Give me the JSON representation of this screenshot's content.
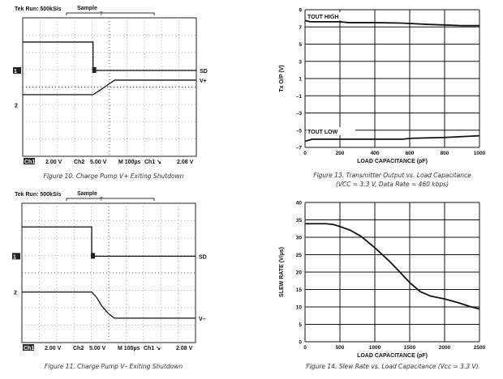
{
  "chart_data": [
    {
      "type": "line",
      "id": "fig10",
      "title": "Figure 10. Charge Pump V+ Exiting Shutdown",
      "header": {
        "run": "Tek Run: 500kS/s",
        "mode": "Sample",
        "trigger_mark": "T"
      },
      "footer": [
        "Ch1",
        "2.00 V",
        "Ch2",
        "5.00 V",
        "M 100µs",
        "Ch1 ↘",
        "2.08 V"
      ],
      "channel_markers": [
        "1",
        "2"
      ],
      "xlim": [
        0,
        10
      ],
      "ylim": [
        0,
        8
      ],
      "units": "divisions",
      "series": [
        {
          "name": "SD",
          "x": [
            0,
            4.05,
            4.05,
            10
          ],
          "y": [
            6.6,
            6.6,
            4.96,
            4.96
          ]
        },
        {
          "name": "V+",
          "x": [
            0,
            4.05,
            4.5,
            5.0,
            5.3,
            10
          ],
          "y": [
            3.56,
            3.56,
            3.85,
            4.2,
            4.4,
            4.4
          ]
        }
      ]
    },
    {
      "type": "line",
      "id": "fig11",
      "title": "Figure 11. Charge Pump V– Exiting Shutdown",
      "header": {
        "run": "Tek Run: 500kS/s",
        "mode": "Sample",
        "trigger_mark": "T"
      },
      "footer": [
        "Ch1",
        "2.00 V",
        "Ch2",
        "5.00 V",
        "M 100µs",
        "Ch1 ↘",
        "2.08 V"
      ],
      "channel_markers": [
        "1",
        "2"
      ],
      "xlim": [
        0,
        10
      ],
      "ylim": [
        0,
        8
      ],
      "units": "divisions",
      "series": [
        {
          "name": "SD",
          "x": [
            0,
            4.02,
            4.02,
            10
          ],
          "y": [
            6.64,
            6.64,
            4.96,
            4.96
          ]
        },
        {
          "name": "V–",
          "x": [
            0,
            4.02,
            4.3,
            4.6,
            5.0,
            5.33,
            10
          ],
          "y": [
            2.9,
            2.9,
            2.6,
            2.1,
            1.65,
            1.4,
            1.4
          ]
        }
      ]
    },
    {
      "type": "line",
      "id": "fig13",
      "title": "Figure 13. Transmitter Output vs. Load Capacitance",
      "subtitle": "(VCC = 3.3 V, Data Rate = 460 kbps)",
      "xlabel": "LOAD CAPACITANCE (pF)",
      "ylabel": "Tx O/P (V)",
      "xlim": [
        0,
        1000
      ],
      "ylim": [
        -7,
        9
      ],
      "xticks": [
        0,
        200,
        400,
        600,
        800,
        1000
      ],
      "yticks": [
        9,
        7,
        5,
        3,
        1,
        -1,
        -3,
        -5,
        -7
      ],
      "ytick_labels": [
        "9",
        "7",
        "5",
        "3",
        "1",
        "–1",
        "–3",
        "–5",
        "–7"
      ],
      "grid": true,
      "series": [
        {
          "name": "TOUT HIGH",
          "x": [
            0,
            30,
            200,
            250,
            400,
            550,
            600,
            700,
            900,
            1000
          ],
          "y": [
            7.75,
            7.6,
            7.6,
            7.5,
            7.5,
            7.45,
            7.4,
            7.3,
            7.15,
            7.15
          ]
        },
        {
          "name": "TOUT LOW",
          "x": [
            0,
            40,
            200,
            560,
            600,
            800,
            1000
          ],
          "y": [
            -6.3,
            -6.05,
            -6.05,
            -6.05,
            -5.95,
            -5.85,
            -5.65
          ]
        }
      ]
    },
    {
      "type": "line",
      "id": "fig14",
      "title": "Figure 14. Slew Rate vs. Load Capacitance (Vcc = 3.3 V)",
      "xlabel": "LOAD CAPACITANCE (pF)",
      "ylabel": "SLEW RATE (V/µs)",
      "xlim": [
        0,
        2500
      ],
      "ylim": [
        0,
        40
      ],
      "xticks": [
        0,
        500,
        1000,
        1500,
        2000,
        2500
      ],
      "yticks": [
        0,
        5,
        10,
        15,
        20,
        25,
        30,
        35,
        40
      ],
      "grid": true,
      "series": [
        {
          "name": "Slew Rate",
          "x": [
            0,
            300,
            400,
            500,
            650,
            800,
            1000,
            1200,
            1350,
            1500,
            1650,
            1800,
            2000,
            2200,
            2350,
            2500
          ],
          "y": [
            33.9,
            33.9,
            33.7,
            33.1,
            32,
            30.3,
            27,
            23.3,
            20.2,
            17,
            14.4,
            13.1,
            12.3,
            11.2,
            10.2,
            9.4
          ]
        }
      ]
    }
  ]
}
